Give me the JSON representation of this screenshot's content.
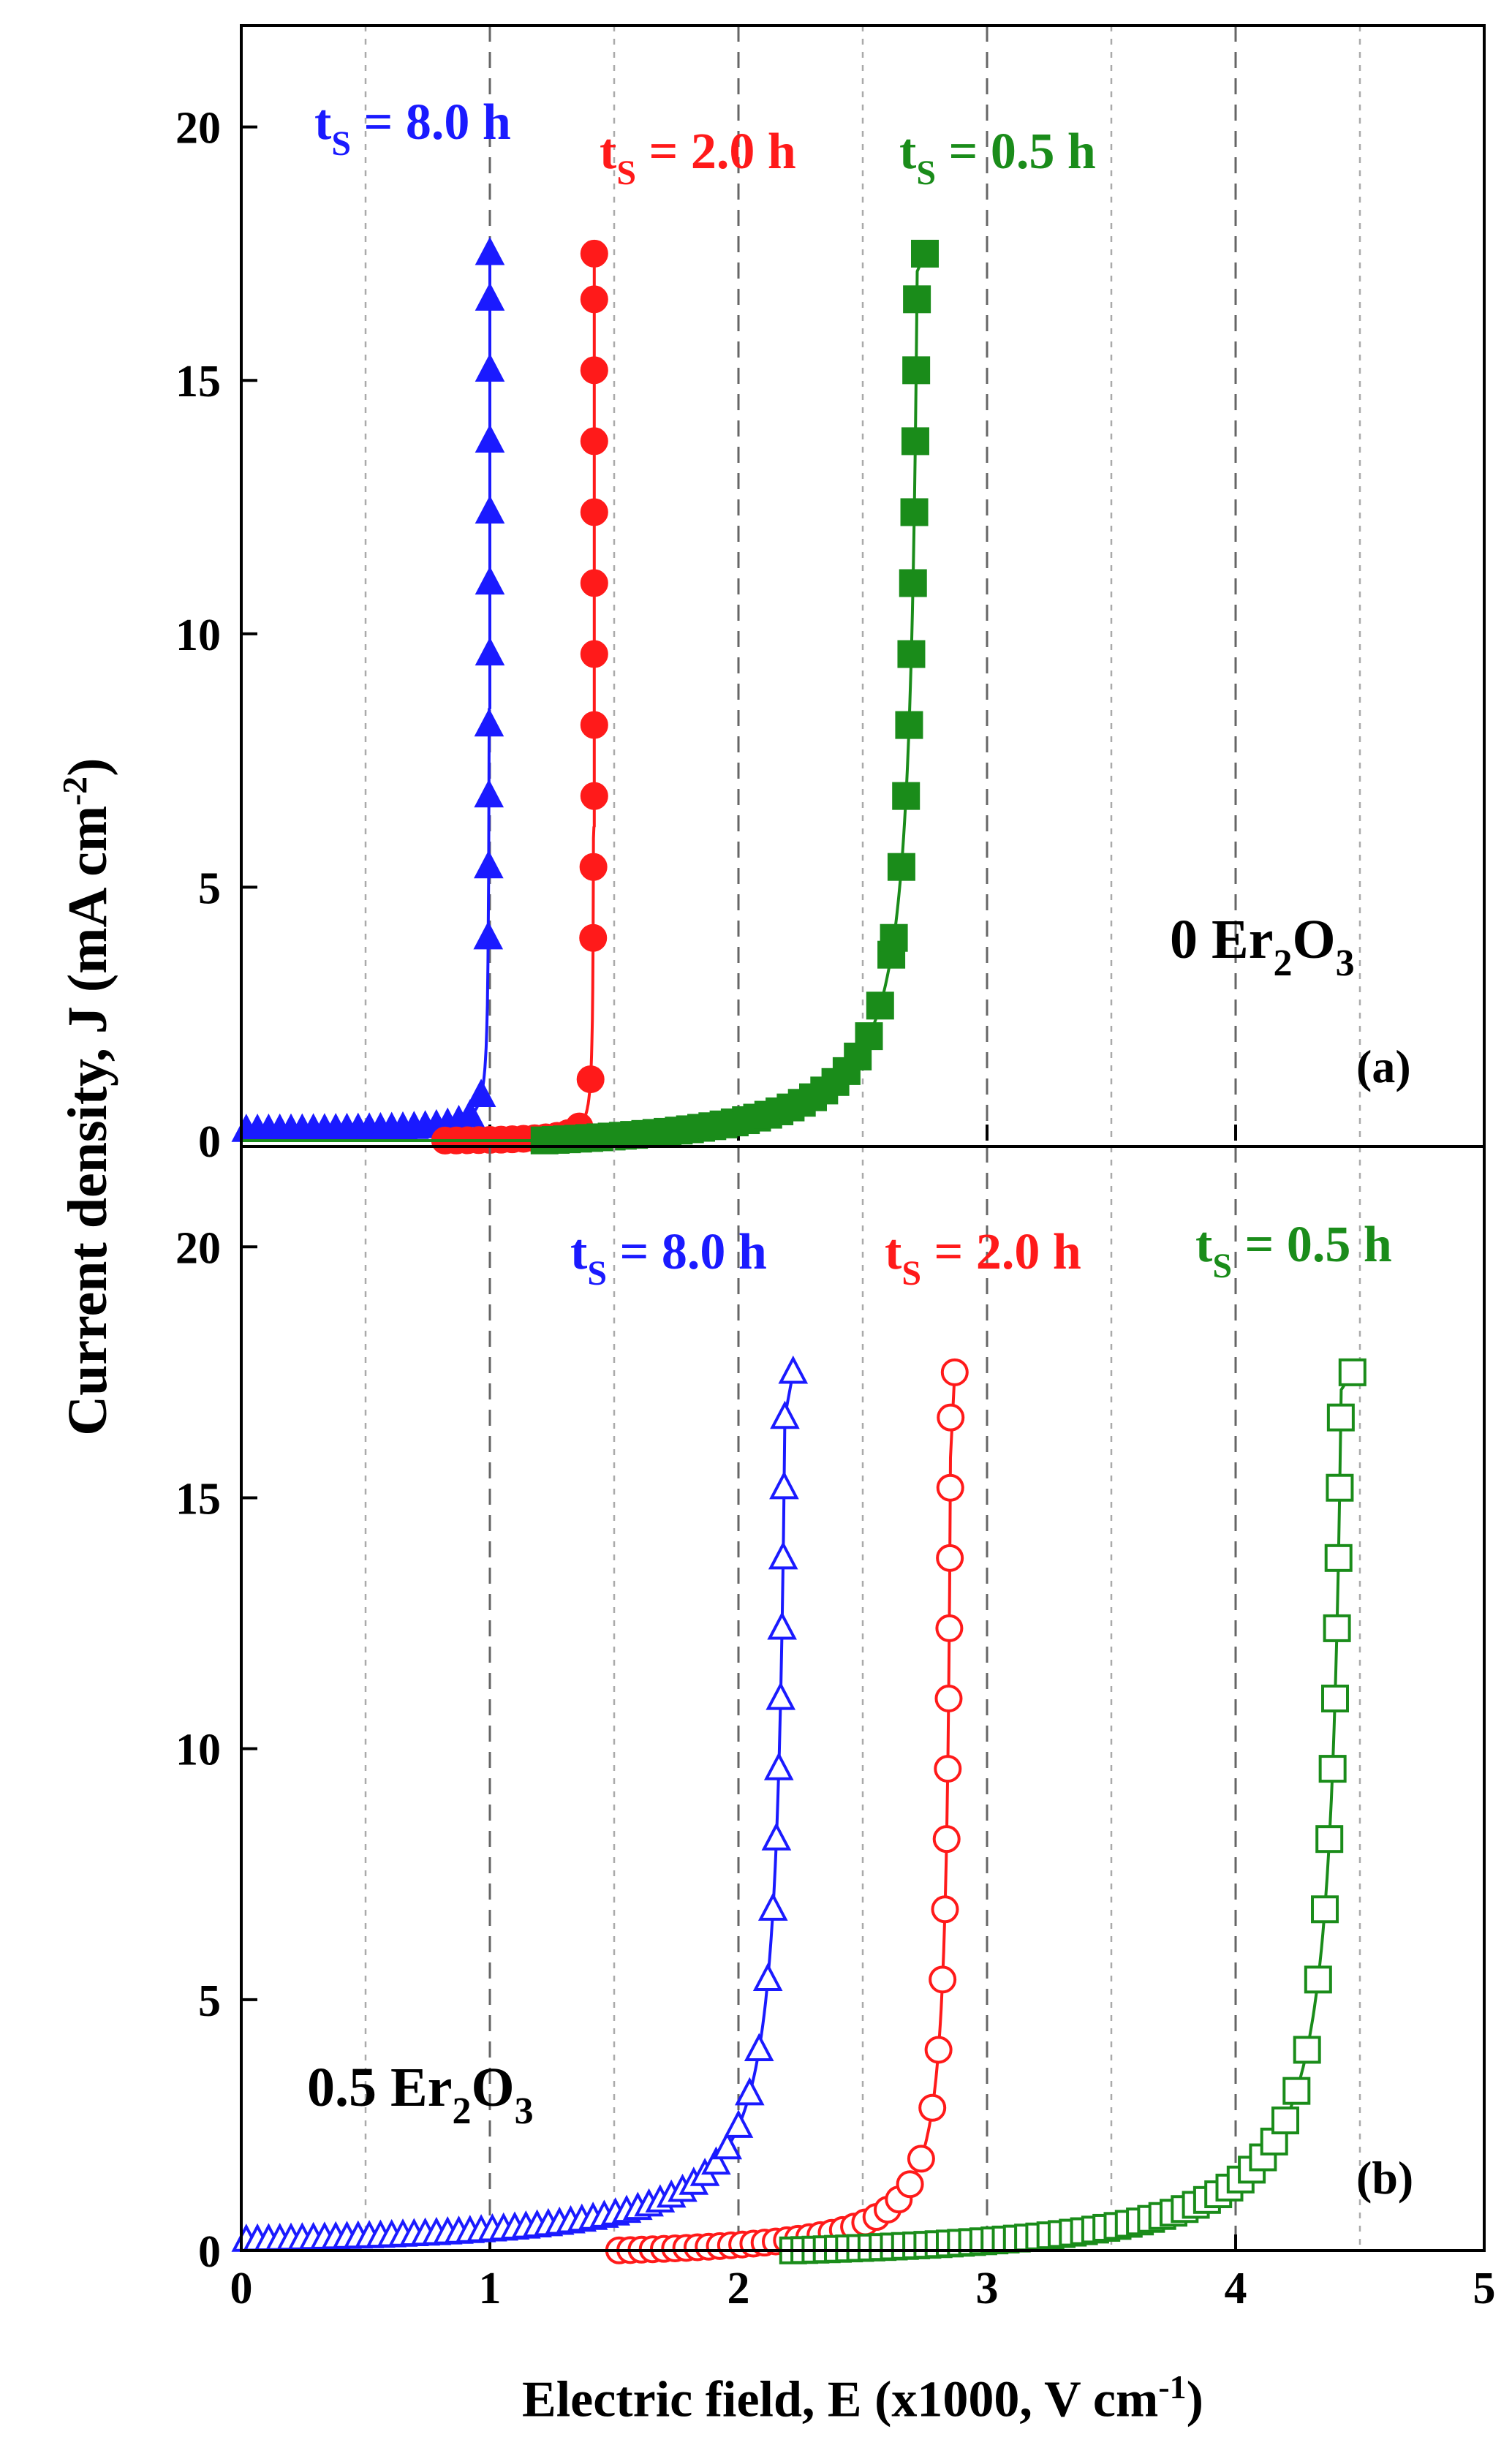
{
  "figure": {
    "ylabel_main": "Current density, J (mA cm",
    "ylabel_sup": "-2",
    "ylabel_close": ")",
    "xlabel_main": "Electric field, E (x1000, V cm",
    "xlabel_sup": "-1",
    "xlabel_close": ")"
  },
  "chart_data": [
    {
      "type": "line",
      "panel_label": "(a)",
      "composition": {
        "prefix": "0 Er",
        "sub1": "2",
        "mid": "O",
        "sub2": "3"
      },
      "xlim": [
        0,
        5
      ],
      "ylim": [
        0,
        22
      ],
      "xticks": [
        0,
        1,
        2,
        3,
        4,
        5
      ],
      "yticks": [
        0,
        5,
        10,
        15,
        20
      ],
      "ytick_labels": [
        "0",
        "5",
        "10",
        "15",
        "20"
      ],
      "grid": "vertical dashed at every 0.5",
      "marker_fill": "filled",
      "series": [
        {
          "name": "t_s = 8.0 h",
          "label": {
            "t": "t",
            "sub": "S",
            "rest": " = 8.0 h"
          },
          "color": "#1a1aff",
          "marker": "triangle",
          "E_low": 0.0,
          "J_low": 0.2,
          "knee": 0.95,
          "E_break": 1.0,
          "J_max": 17.5,
          "curv": 0.025
        },
        {
          "name": "t_s = 2.0 h",
          "label": {
            "t": "t",
            "sub": "S",
            "rest": " = 2.0 h"
          },
          "color": "#ff1a1a",
          "marker": "circle",
          "E_low": 0.8,
          "J_low": 0.0,
          "knee": 1.37,
          "E_break": 1.42,
          "J_max": 17.5,
          "curv": 0.03
        },
        {
          "name": "t_s = 0.5 h",
          "label": {
            "t": "t",
            "sub": "S",
            "rest": " = 0.5 h"
          },
          "color": "#1a8c1a",
          "marker": "square",
          "E_low": 1.2,
          "J_low": 0.0,
          "knee": 2.65,
          "E_break": 2.75,
          "J_max": 17.5,
          "curv": 0.35
        }
      ]
    },
    {
      "type": "line",
      "panel_label": "(b)",
      "composition": {
        "prefix": "0.5 Er",
        "sub1": "2",
        "mid": "O",
        "sub2": "3"
      },
      "xlim": [
        0,
        5
      ],
      "ylim": [
        0,
        22
      ],
      "xticks": [
        0,
        1,
        2,
        3,
        4,
        5
      ],
      "xtick_labels": [
        "0",
        "1",
        "2",
        "3",
        "4",
        "5"
      ],
      "yticks": [
        0,
        5,
        10,
        15,
        20
      ],
      "ytick_labels": [
        "0",
        "5",
        "10",
        "15",
        "20"
      ],
      "grid": "vertical dashed at every 0.5",
      "marker_fill": "open",
      "series": [
        {
          "name": "t_s = 8.0 h",
          "label": {
            "t": "t",
            "sub": "S",
            "rest": " = 8.0 h"
          },
          "color": "#1a1aff",
          "marker": "triangle",
          "E_low": 0.0,
          "J_low": 0.2,
          "knee": 2.1,
          "E_break": 2.22,
          "J_max": 17.5,
          "curv": 0.25
        },
        {
          "name": "t_s = 2.0 h",
          "label": {
            "t": "t",
            "sub": "S",
            "rest": " = 2.0 h"
          },
          "color": "#ff1a1a",
          "marker": "circle",
          "E_low": 1.5,
          "J_low": 0.0,
          "knee": 2.75,
          "E_break": 2.87,
          "J_max": 17.5,
          "curv": 0.2
        },
        {
          "name": "t_s = 0.5 h",
          "label": {
            "t": "t",
            "sub": "S",
            "rest": " = 0.5 h"
          },
          "color": "#1a8c1a",
          "marker": "square",
          "E_low": 2.2,
          "J_low": 0.0,
          "knee": 4.35,
          "E_break": 4.47,
          "J_max": 17.5,
          "curv": 0.35
        }
      ]
    }
  ]
}
